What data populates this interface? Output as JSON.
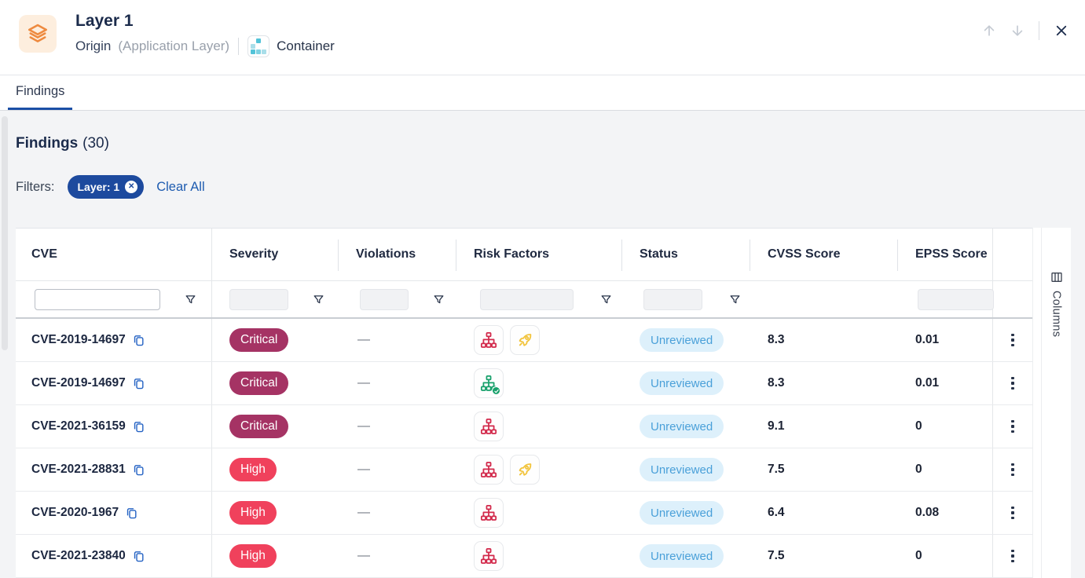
{
  "header": {
    "title": "Layer 1",
    "origin": "Origin",
    "origin_detail": "(Application Layer)",
    "type_label": "Container"
  },
  "tabs": [
    {
      "label": "Findings",
      "active": true
    }
  ],
  "findings": {
    "title": "Findings",
    "count": "(30)"
  },
  "filters": {
    "label": "Filters:",
    "chip": "Layer: 1",
    "chip_remove": "✕",
    "clear_all": "Clear All"
  },
  "table": {
    "columns": [
      "CVE",
      "Severity",
      "Violations",
      "Risk Factors",
      "Status",
      "CVSS Score",
      "EPSS Score"
    ],
    "filter_row": {
      "cve_value": ""
    },
    "columns_button": "Columns",
    "rows": [
      {
        "cve": "CVE-2019-14697",
        "severity": "Critical",
        "violations": "—",
        "risk_factors": [
          "network-attack-vector",
          "exploit-exists"
        ],
        "status": "Unreviewed",
        "cvss": "8.3",
        "epss": "0.01"
      },
      {
        "cve": "CVE-2019-14697",
        "severity": "Critical",
        "violations": "—",
        "risk_factors": [
          "network-attack-vector-verified"
        ],
        "status": "Unreviewed",
        "cvss": "8.3",
        "epss": "0.01"
      },
      {
        "cve": "CVE-2021-36159",
        "severity": "Critical",
        "violations": "—",
        "risk_factors": [
          "network-attack-vector"
        ],
        "status": "Unreviewed",
        "cvss": "9.1",
        "epss": "0"
      },
      {
        "cve": "CVE-2021-28831",
        "severity": "High",
        "violations": "—",
        "risk_factors": [
          "network-attack-vector",
          "exploit-exists"
        ],
        "status": "Unreviewed",
        "cvss": "7.5",
        "epss": "0"
      },
      {
        "cve": "CVE-2020-1967",
        "severity": "High",
        "violations": "—",
        "risk_factors": [
          "network-attack-vector"
        ],
        "status": "Unreviewed",
        "cvss": "6.4",
        "epss": "0.08"
      },
      {
        "cve": "CVE-2021-23840",
        "severity": "High",
        "violations": "—",
        "risk_factors": [
          "network-attack-vector"
        ],
        "status": "Unreviewed",
        "cvss": "7.5",
        "epss": "0"
      }
    ]
  },
  "colors": {
    "critical": "#a53364",
    "high": "#f0415c",
    "status-bg": "#ddf0fb",
    "status-text": "#4aa0d9",
    "chip-blue": "#1d4a9e",
    "link-blue": "#1d5bb0",
    "tab-accent": "#1b4fa6",
    "risk-red": "#d2294b",
    "risk-green": "#17a06b",
    "rocket-gold": "#f2c43d",
    "brand-orange": "#ee8a3f",
    "teal": "#53c3d8"
  }
}
